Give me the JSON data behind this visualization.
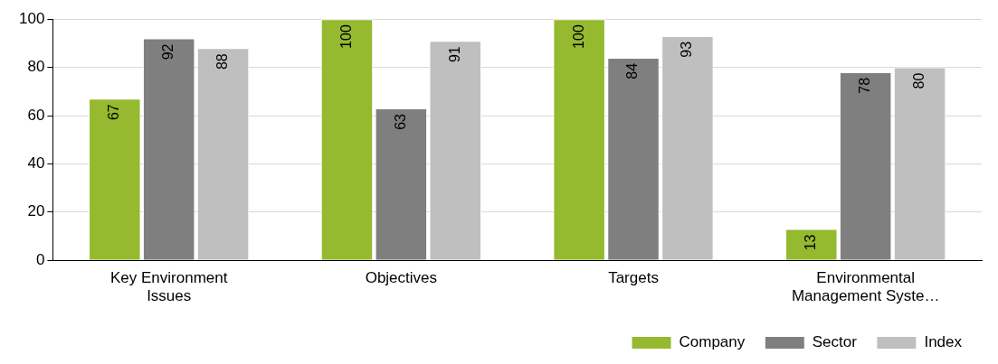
{
  "chart_data": {
    "type": "bar",
    "categories": [
      "Key Environment Issues",
      "Objectives",
      "Targets",
      "Environmental Management Syste…"
    ],
    "series": [
      {
        "name": "Company",
        "color": "#95b92f",
        "values": [
          67,
          100,
          100,
          13
        ]
      },
      {
        "name": "Sector",
        "color": "#7f7f7f",
        "values": [
          92,
          63,
          84,
          78
        ]
      },
      {
        "name": "Index",
        "color": "#bfbfbf",
        "values": [
          88,
          91,
          93,
          80
        ]
      }
    ],
    "ylim": [
      0,
      100
    ],
    "yticks": [
      0,
      20,
      40,
      60,
      80,
      100
    ],
    "grid": "y",
    "legend": "bottom right",
    "data_labels": true
  }
}
